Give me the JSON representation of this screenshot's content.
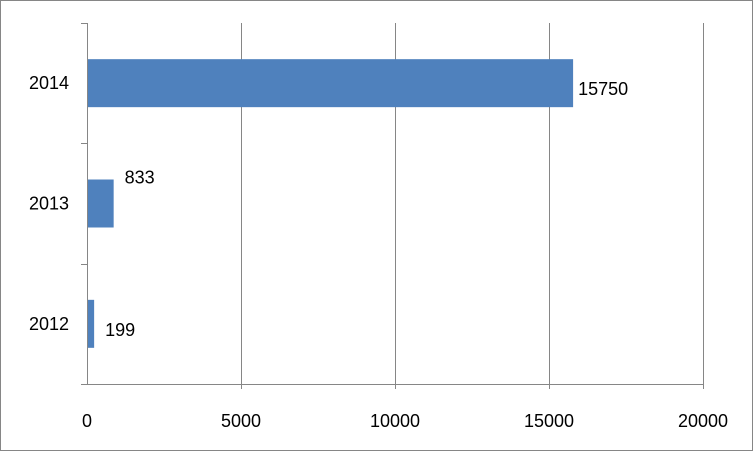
{
  "chart_data": {
    "type": "bar",
    "orientation": "horizontal",
    "categories": [
      "2012",
      "2013",
      "2014"
    ],
    "values": [
      199,
      833,
      15750
    ],
    "data_labels": [
      "199",
      "833",
      "15750"
    ],
    "x_ticks": [
      "0",
      "5000",
      "10000",
      "15000",
      "20000"
    ],
    "xlim": [
      0,
      20000
    ],
    "grid": "vertical",
    "legend": "none",
    "bar_color": "#4f81bd"
  }
}
